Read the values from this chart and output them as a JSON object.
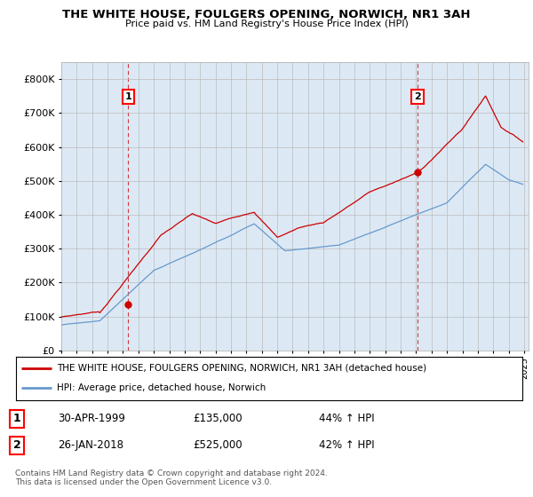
{
  "title": "THE WHITE HOUSE, FOULGERS OPENING, NORWICH, NR1 3AH",
  "subtitle": "Price paid vs. HM Land Registry's House Price Index (HPI)",
  "ylim": [
    0,
    850000
  ],
  "yticks": [
    0,
    100000,
    200000,
    300000,
    400000,
    500000,
    600000,
    700000,
    800000
  ],
  "red_color": "#cc0000",
  "blue_color": "#6699cc",
  "chart_bg_color": "#dce9f5",
  "legend_red_label": "THE WHITE HOUSE, FOULGERS OPENING, NORWICH, NR1 3AH (detached house)",
  "legend_blue_label": "HPI: Average price, detached house, Norwich",
  "table_row1": [
    "1",
    "30-APR-1999",
    "£135,000",
    "44% ↑ HPI"
  ],
  "table_row2": [
    "2",
    "26-JAN-2018",
    "£525,000",
    "42% ↑ HPI"
  ],
  "footnote": "Contains HM Land Registry data © Crown copyright and database right 2024.\nThis data is licensed under the Open Government Licence v3.0.",
  "background_color": "#ffffff",
  "grid_color": "#bbbbbb",
  "sale1_x": 1999.33,
  "sale1_y": 135000,
  "sale2_x": 2018.083,
  "sale2_y": 525000,
  "xmin": 1995,
  "xmax": 2025.3
}
